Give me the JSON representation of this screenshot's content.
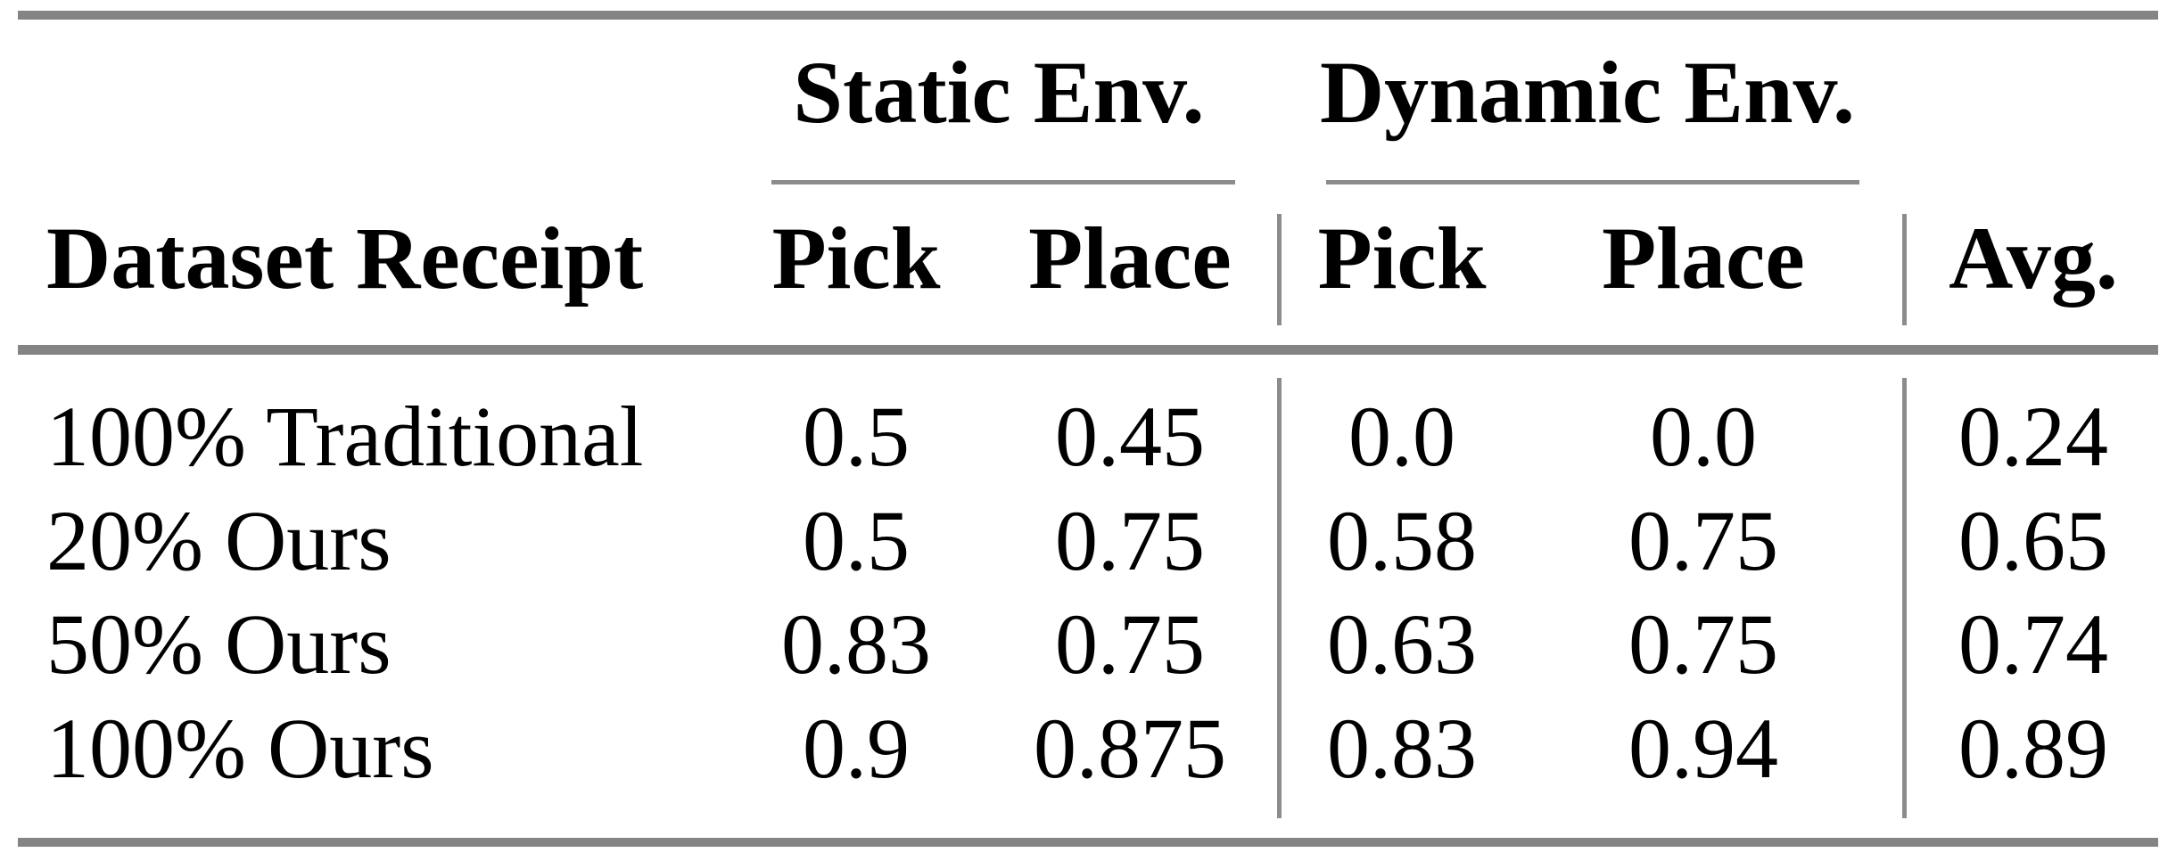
{
  "table": {
    "title": "pick-and-place success-rate results table",
    "col_groups": {
      "static": "Static Env.",
      "dynamic": "Dynamic Env."
    },
    "headers": {
      "row_label": "Dataset Receipt",
      "static_pick": "Pick",
      "static_place": "Place",
      "dynamic_pick": "Pick",
      "dynamic_place": "Place",
      "avg": "Avg."
    },
    "rows": [
      [
        "100% Traditional",
        "0.5",
        "0.45",
        "0.0",
        "0.0",
        "0.24"
      ],
      [
        "20% Ours",
        "0.5",
        "0.75",
        "0.58",
        "0.75",
        "0.65"
      ],
      [
        "50% Ours",
        "0.83",
        "0.75",
        "0.63",
        "0.75",
        "0.74"
      ],
      [
        "100% Ours",
        "0.9",
        "0.875",
        "0.83",
        "0.94",
        "0.89"
      ]
    ],
    "colors": {
      "rule_thick": "#848484",
      "rule_thin": "#8c8c8c",
      "text": "#000000",
      "background": "#ffffff"
    },
    "chart_data": {
      "type": "table",
      "title": "",
      "column_groups": [
        {
          "label": "Static Env.",
          "columns": [
            "Pick",
            "Place"
          ]
        },
        {
          "label": "Dynamic Env.",
          "columns": [
            "Pick",
            "Place"
          ]
        }
      ],
      "columns": [
        "Dataset Receipt",
        "Static Pick",
        "Static Place",
        "Dynamic Pick",
        "Dynamic Place",
        "Avg."
      ],
      "rows": [
        {
          "label": "100% Traditional",
          "values": [
            0.5,
            0.45,
            0.0,
            0.0,
            0.24
          ]
        },
        {
          "label": "20% Ours",
          "values": [
            0.5,
            0.75,
            0.58,
            0.75,
            0.65
          ]
        },
        {
          "label": "50% Ours",
          "values": [
            0.83,
            0.75,
            0.63,
            0.75,
            0.74
          ]
        },
        {
          "label": "100% Ours",
          "values": [
            0.9,
            0.875,
            0.83,
            0.94,
            0.89
          ]
        }
      ]
    }
  }
}
